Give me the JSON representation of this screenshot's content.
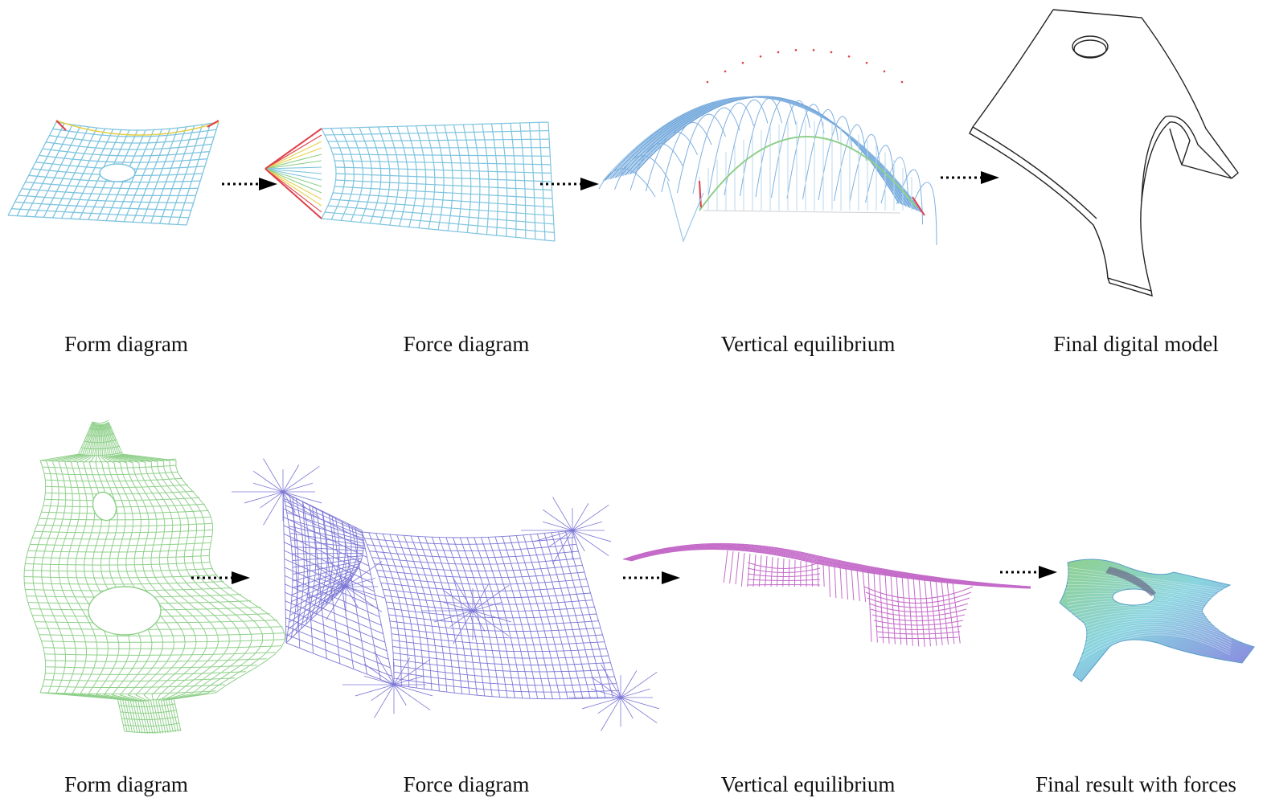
{
  "rows": [
    {
      "captions": [
        "Form diagram",
        "Force diagram",
        "Vertical equilibrium",
        "Final digital model"
      ]
    },
    {
      "captions": [
        "Form diagram",
        "Force diagram",
        "Vertical equilibrium",
        "Final result with forces"
      ]
    }
  ],
  "colors": {
    "grid_blue": "#7ec4df",
    "grid_blue_dark": "#6a9fd8",
    "grid_green": "#8fd08a",
    "grid_purple": "#7d78d6",
    "grid_magenta": "#c46bc9",
    "edge_red": "#e0404a",
    "edge_yellow": "#e5d04a",
    "arrow": "#000000",
    "outline": "#222222"
  },
  "icons": [
    "dotted-arrow-icon"
  ]
}
